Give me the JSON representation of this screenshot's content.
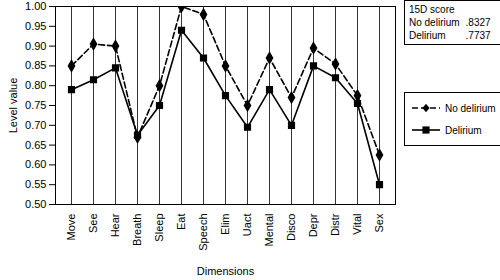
{
  "chart_data": {
    "type": "line",
    "x_label": "Dimensions",
    "y_label": "Level value",
    "categories": [
      "Move",
      "See",
      "Hear",
      "Breath",
      "Sleep",
      "Eat",
      "Speech",
      "Elim",
      "Uact",
      "Mental",
      "Disco",
      "Depr",
      "Distr",
      "Vital",
      "Sex"
    ],
    "series": [
      {
        "name": "No delirium",
        "color": "#000000",
        "marker": "diamond",
        "line_style": "dashed",
        "values": [
          0.85,
          0.905,
          0.9,
          0.67,
          0.8,
          1.0,
          0.98,
          0.85,
          0.75,
          0.87,
          0.77,
          0.895,
          0.855,
          0.775,
          0.625
        ]
      },
      {
        "name": "Delirium",
        "color": "#000000",
        "marker": "square",
        "line_style": "solid",
        "values": [
          0.79,
          0.815,
          0.845,
          0.675,
          0.75,
          0.94,
          0.87,
          0.775,
          0.695,
          0.79,
          0.7,
          0.85,
          0.82,
          0.755,
          0.55
        ]
      }
    ],
    "ylim": [
      0.5,
      1.0
    ],
    "yticks": [
      {
        "value": 0.5,
        "label": "0.50"
      },
      {
        "value": 0.55,
        "label": "0.55"
      },
      {
        "value": 0.6,
        "label": "0.60"
      },
      {
        "value": 0.65,
        "label": "0.65"
      },
      {
        "value": 0.7,
        "label": "0.70"
      },
      {
        "value": 0.75,
        "label": "0.75"
      },
      {
        "value": 0.8,
        "label": "0.80"
      },
      {
        "value": 0.85,
        "label": "0.85"
      },
      {
        "value": 0.9,
        "label": "0.90"
      },
      {
        "value": 0.95,
        "label": "0.95"
      },
      {
        "value": 1.0,
        "label": "1.00"
      }
    ],
    "grid": "x",
    "legend": "right",
    "annotations": [
      {
        "title": "15D score",
        "rows": [
          {
            "name": "No delirium",
            "label": ".8327"
          },
          {
            "name": "Delirium",
            "label": ".7737"
          }
        ]
      }
    ]
  }
}
